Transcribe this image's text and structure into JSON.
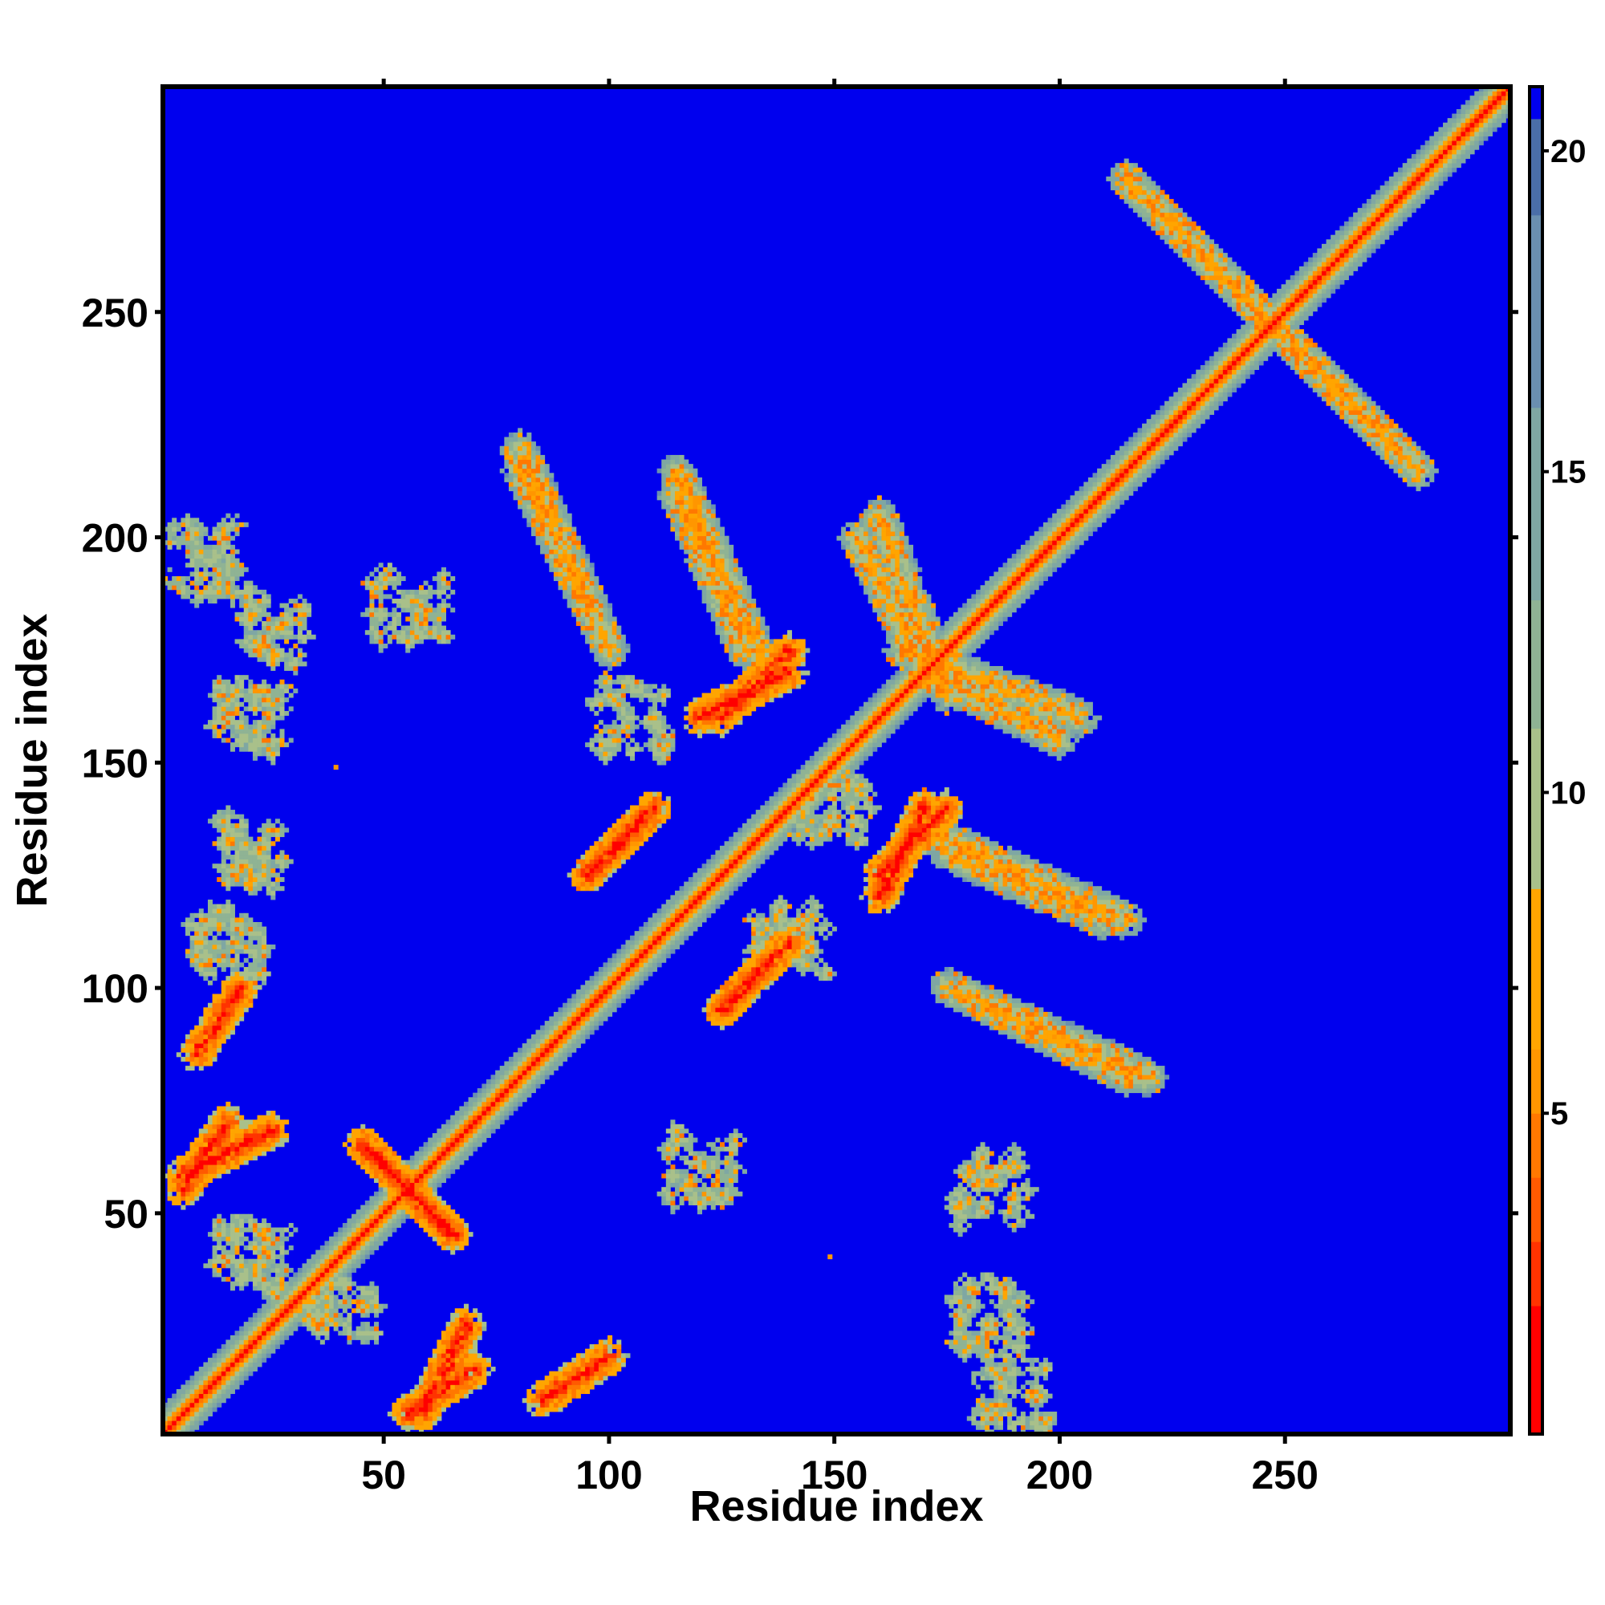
{
  "chart_data": {
    "type": "heatmap",
    "title": "",
    "xlabel": "Residue index",
    "ylabel": "Residue index",
    "n_residues": 300,
    "xlim": [
      1,
      300
    ],
    "ylim": [
      1,
      300
    ],
    "x_ticks": [
      50,
      100,
      150,
      200,
      250
    ],
    "y_ticks": [
      50,
      100,
      150,
      200,
      250
    ],
    "x_tick_labels": [
      "50",
      "100",
      "150",
      "200",
      "250"
    ],
    "y_tick_labels": [
      "50",
      "100",
      "150",
      "200",
      "250"
    ],
    "value_range": [
      0,
      21
    ],
    "colorbar": {
      "ticks": [
        5,
        10,
        15,
        20
      ],
      "tick_labels": [
        "5",
        "10",
        "15",
        "20"
      ],
      "colors": [
        {
          "from": 0,
          "to": 2,
          "color": "#ff0000"
        },
        {
          "from": 2,
          "to": 3,
          "color": "#ff3300"
        },
        {
          "from": 3,
          "to": 4,
          "color": "#ff5a00"
        },
        {
          "from": 4,
          "to": 5,
          "color": "#ff7800"
        },
        {
          "from": 5,
          "to": 6,
          "color": "#ff9600"
        },
        {
          "from": 6,
          "to": 8.5,
          "color": "#ffa500"
        },
        {
          "from": 8.5,
          "to": 11,
          "color": "#a9c08a"
        },
        {
          "from": 11,
          "to": 13,
          "color": "#8fb394"
        },
        {
          "from": 13,
          "to": 16,
          "color": "#7fa7a3"
        },
        {
          "from": 16,
          "to": 19,
          "color": "#6a8fb0"
        },
        {
          "from": 19,
          "to": 20.5,
          "color": "#4a6ea8"
        },
        {
          "from": 20.5,
          "to": 21,
          "color": "#0000ee"
        }
      ]
    },
    "background_value": 21,
    "background_color": "#0000ee",
    "diagonal": {
      "from": 1,
      "to": 300,
      "core_value": 1,
      "band_values": [
        4,
        6,
        10,
        12,
        14,
        16
      ]
    },
    "contact_bands": [
      {
        "description": "anti-parallel",
        "x_range": [
          215,
          280
        ],
        "y_range": [
          280,
          215
        ],
        "value": 12
      },
      {
        "description": "anti-parallel",
        "x_range": [
          165,
          205
        ],
        "y_range": [
          175,
          160
        ],
        "value": 12
      },
      {
        "description": "anti-parallel",
        "x_range": [
          170,
          215
        ],
        "y_range": [
          135,
          115
        ],
        "value": 12
      },
      {
        "description": "anti-parallel",
        "x_range": [
          175,
          220
        ],
        "y_range": [
          100,
          80
        ],
        "value": 12
      },
      {
        "description": "anti-parallel",
        "x_range": [
          45,
          65
        ],
        "y_range": [
          65,
          45
        ],
        "value": 6
      },
      {
        "description": "anti-parallel",
        "x_range": [
          5,
          25
        ],
        "y_range": [
          58,
          68
        ],
        "value": 6
      },
      {
        "description": "parallel",
        "x_range": [
          80,
          95
        ],
        "y_range": [
          215,
          185
        ],
        "value": 12
      },
      {
        "description": "parallel",
        "x_range": [
          115,
          130
        ],
        "y_range": [
          210,
          175
        ],
        "value": 12
      },
      {
        "description": "parallel",
        "x_range": [
          155,
          170
        ],
        "y_range": [
          200,
          170
        ],
        "value": 12
      },
      {
        "description": "parallel",
        "x_range": [
          125,
          140
        ],
        "y_range": [
          95,
          110
        ],
        "value": 6
      },
      {
        "description": "parallel",
        "x_range": [
          125,
          140
        ],
        "y_range": [
          160,
          175
        ],
        "value": 6
      },
      {
        "description": "parallel",
        "x_range": [
          160,
          170
        ],
        "y_range": [
          120,
          140
        ],
        "value": 6
      },
      {
        "description": "parallel",
        "x_range": [
          95,
          105
        ],
        "y_range": [
          125,
          135
        ],
        "value": 6
      },
      {
        "description": "parallel",
        "x_range": [
          55,
          70
        ],
        "y_range": [
          5,
          15
        ],
        "value": 6
      },
      {
        "description": "parallel",
        "x_range": [
          85,
          100
        ],
        "y_range": [
          8,
          18
        ],
        "value": 6
      }
    ],
    "contact_blobs": [
      {
        "x": 10,
        "y": 195,
        "value": 12
      },
      {
        "x": 25,
        "y": 180,
        "value": 12
      },
      {
        "x": 55,
        "y": 185,
        "value": 12
      },
      {
        "x": 185,
        "y": 55,
        "value": 12
      },
      {
        "x": 185,
        "y": 27,
        "value": 12
      },
      {
        "x": 190,
        "y": 10,
        "value": 12
      },
      {
        "x": 15,
        "y": 110,
        "value": 12
      },
      {
        "x": 20,
        "y": 160,
        "value": 12
      },
      {
        "x": 20,
        "y": 130,
        "value": 12
      },
      {
        "x": 120,
        "y": 60,
        "value": 12
      },
      {
        "x": 140,
        "y": 110,
        "value": 12
      },
      {
        "x": 150,
        "y": 140,
        "value": 12
      },
      {
        "x": 105,
        "y": 160,
        "value": 12
      },
      {
        "x": 40,
        "y": 30,
        "value": 12
      },
      {
        "x": 20,
        "y": 40,
        "value": 12
      }
    ],
    "isolated_points": [
      {
        "x": 39,
        "y": 149,
        "value": 5
      },
      {
        "x": 149,
        "y": 40,
        "value": 5
      }
    ]
  }
}
